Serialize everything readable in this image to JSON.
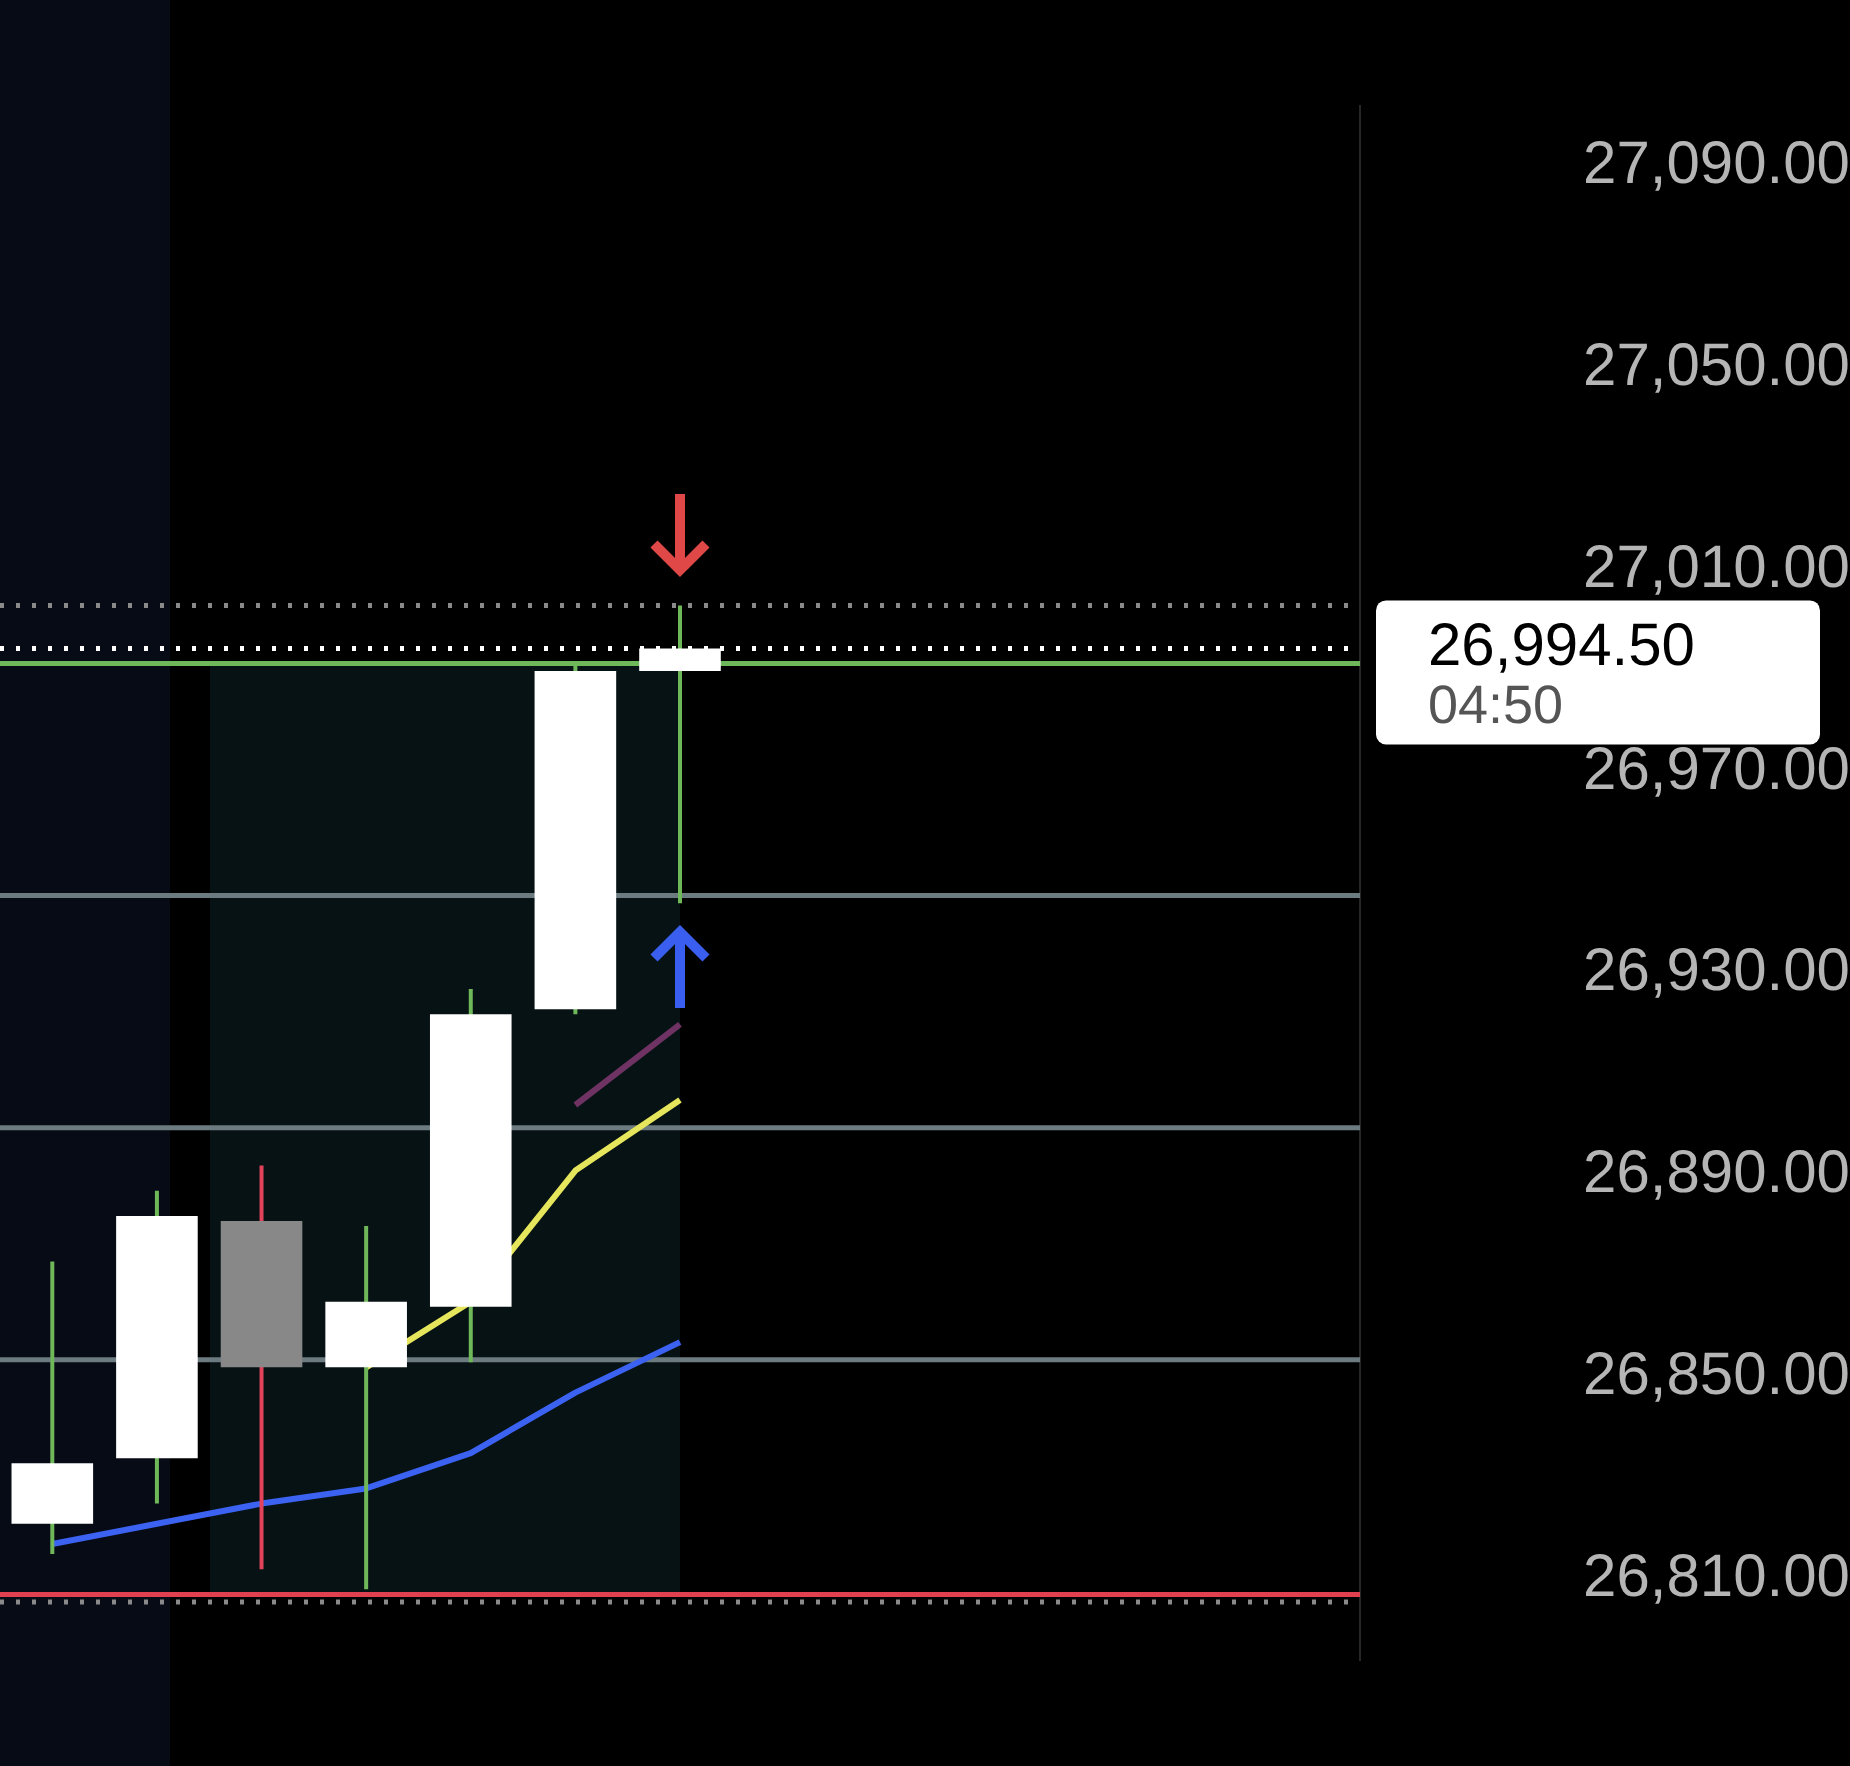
{
  "chart_data": {
    "type": "candlestick",
    "categories": [
      null,
      null,
      null,
      null,
      null,
      null,
      null,
      null,
      null,
      null,
      null,
      null,
      null
    ],
    "ohlc": [
      [
        26821,
        26873,
        26815,
        26833
      ],
      [
        26834,
        26887,
        26825,
        26882
      ],
      [
        26881,
        26892,
        26812,
        26852
      ],
      [
        26852,
        26880,
        26808,
        26865
      ],
      [
        26864,
        26927,
        26853,
        26922
      ],
      [
        26923,
        26991,
        26922,
        26990
      ],
      [
        26990,
        27003,
        26944,
        26994.5
      ],
      null,
      null,
      null,
      null,
      null,
      null
    ],
    "colors": [
      "#ffffff",
      "#ffffff",
      "#888888",
      "#ffffff",
      "#ffffff",
      "#ffffff",
      "#ffffff",
      null,
      null,
      null,
      null,
      null,
      null
    ],
    "series": [
      {
        "type": "line",
        "color": "#3b62f0",
        "values": [
          26817,
          26821,
          26825,
          26828,
          26835,
          26847,
          26857,
          null,
          null,
          null,
          null,
          null,
          null
        ]
      },
      {
        "type": "line",
        "color": "#e6e65c",
        "values": [
          null,
          null,
          null,
          26852,
          26865,
          26891,
          26905,
          null,
          null,
          null,
          null,
          null,
          null
        ]
      },
      {
        "type": "line",
        "color": "#6e3363",
        "values": [
          null,
          null,
          null,
          null,
          null,
          26904,
          26920,
          null,
          null,
          null,
          null,
          null,
          null
        ]
      }
    ],
    "ylim": [
      26794,
      27102
    ],
    "yticks": [
      {
        "value": 26810,
        "label": "26,810.00"
      },
      {
        "value": 26850,
        "label": "26,850.00"
      },
      {
        "value": 26890,
        "label": "26,890.00"
      },
      {
        "value": 26930,
        "label": "26,930.00"
      },
      {
        "value": 26970,
        "label": "26,970.00"
      },
      {
        "value": 27010,
        "label": "27,010.00"
      },
      {
        "value": 27050,
        "label": "27,050.00"
      },
      {
        "value": 27090,
        "label": "27,090.00"
      }
    ],
    "ref_lines": [
      {
        "axis": "y",
        "value": 27003,
        "color": "#8a8a8a",
        "line_style": "dotted"
      },
      {
        "axis": "y",
        "value": 26994.5,
        "color": "#ffffff",
        "line_style": "dotted"
      },
      {
        "axis": "y",
        "value": 26805.5,
        "color": "#8a8a8a",
        "line_style": "dotted"
      },
      {
        "axis": "y",
        "value": 26991.5,
        "color": "#6fb85a",
        "line_style": "solid"
      },
      {
        "axis": "y",
        "value": 26945.5,
        "color": "#6b7b80",
        "line_style": "solid"
      },
      {
        "axis": "y",
        "value": 26899.5,
        "color": "#6b7b80",
        "line_style": "solid"
      },
      {
        "axis": "y",
        "value": 26853.5,
        "color": "#6b7b80",
        "line_style": "solid"
      },
      {
        "axis": "y",
        "value": 26807,
        "color": "#e04050",
        "line_style": "solid"
      }
    ],
    "annotations": [
      "26,994.50",
      "04:50"
    ],
    "legend": false
  }
}
